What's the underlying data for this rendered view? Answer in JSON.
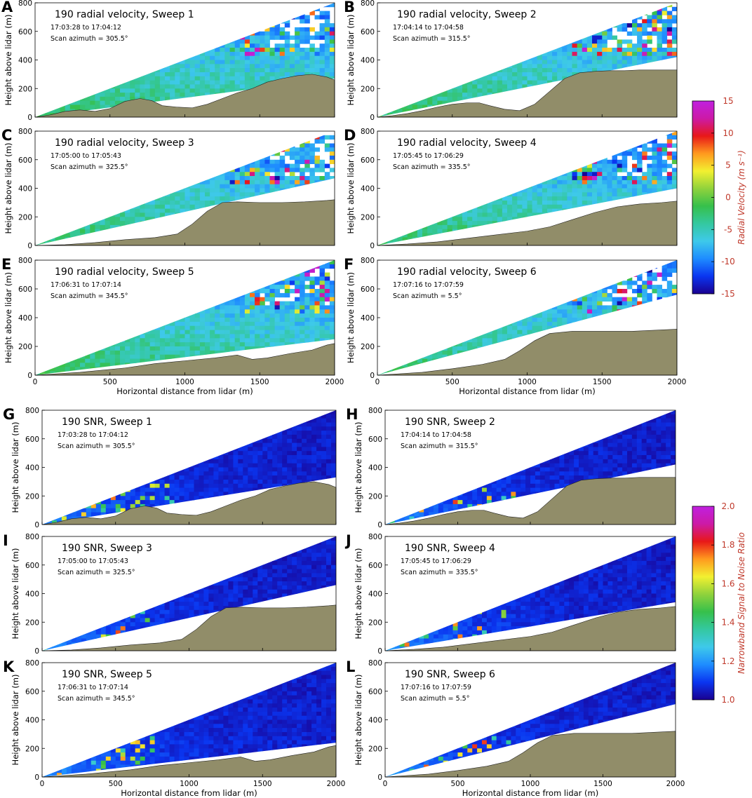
{
  "colors": {
    "terrain": "#918d69",
    "colormap": [
      "#1a0090",
      "#0a35f0",
      "#1e8cff",
      "#3ec9ea",
      "#34c8a0",
      "#36c04b",
      "#8fd23c",
      "#f2f030",
      "#ff9a1e",
      "#e81818",
      "#cc1aa6",
      "#c020e0"
    ],
    "label_color": "#c0392b"
  },
  "chart_data": [
    {
      "type": "heatmap",
      "panel": "A",
      "title": "190 radial velocity, Sweep 1",
      "time": "17:03:28 to 17:04:12",
      "azimuth": "Scan azimuth = 305.5°",
      "ylabel": "Height above lidar (m)",
      "xlabel": "",
      "x_ticks": [
        0,
        500,
        1000,
        1500,
        2000
      ],
      "y_ticks": [
        0,
        200,
        400,
        600,
        800
      ],
      "xlim": [
        0,
        2000
      ],
      "ylim": [
        0,
        800
      ],
      "beam_top_end": 800,
      "beam_bottom_end": 270,
      "terrain": [
        [
          0,
          0
        ],
        [
          100,
          15
        ],
        [
          200,
          40
        ],
        [
          300,
          50
        ],
        [
          400,
          40
        ],
        [
          500,
          60
        ],
        [
          600,
          110
        ],
        [
          700,
          130
        ],
        [
          780,
          115
        ],
        [
          850,
          80
        ],
        [
          950,
          70
        ],
        [
          1050,
          65
        ],
        [
          1150,
          90
        ],
        [
          1250,
          130
        ],
        [
          1350,
          170
        ],
        [
          1450,
          200
        ],
        [
          1550,
          245
        ],
        [
          1650,
          270
        ],
        [
          1750,
          290
        ],
        [
          1850,
          300
        ],
        [
          1950,
          280
        ],
        [
          2000,
          260
        ]
      ],
      "field": "radial_velocity"
    },
    {
      "type": "heatmap",
      "panel": "B",
      "title": "190 radial velocity, Sweep 2",
      "time": "17:04:14 to 17:04:58",
      "azimuth": "Scan azimuth = 315.5°",
      "ylabel": "Height above lidar (m)",
      "xlabel": "",
      "x_ticks": [
        0,
        500,
        1000,
        1500,
        2000
      ],
      "y_ticks": [
        0,
        200,
        400,
        600,
        800
      ],
      "xlim": [
        0,
        2000
      ],
      "ylim": [
        0,
        800
      ],
      "beam_top_end": 800,
      "beam_bottom_end": 420,
      "terrain": [
        [
          0,
          0
        ],
        [
          100,
          10
        ],
        [
          200,
          25
        ],
        [
          300,
          45
        ],
        [
          400,
          70
        ],
        [
          500,
          90
        ],
        [
          600,
          100
        ],
        [
          680,
          100
        ],
        [
          750,
          80
        ],
        [
          850,
          55
        ],
        [
          950,
          45
        ],
        [
          1050,
          90
        ],
        [
          1150,
          180
        ],
        [
          1250,
          270
        ],
        [
          1350,
          310
        ],
        [
          1450,
          320
        ],
        [
          1550,
          325
        ],
        [
          1650,
          325
        ],
        [
          1750,
          330
        ],
        [
          1850,
          330
        ],
        [
          2000,
          330
        ]
      ],
      "field": "radial_velocity"
    },
    {
      "type": "heatmap",
      "panel": "C",
      "title": "190 radial velocity, Sweep 3",
      "time": "17:05:00 to 17:05:43",
      "azimuth": "Scan azimuth = 325.5°",
      "ylabel": "Height above lidar (m)",
      "xlabel": "",
      "x_ticks": [
        0,
        500,
        1000,
        1500,
        2000
      ],
      "y_ticks": [
        0,
        200,
        400,
        600,
        800
      ],
      "xlim": [
        0,
        2000
      ],
      "ylim": [
        0,
        800
      ],
      "beam_top_end": 800,
      "beam_bottom_end": 470,
      "terrain": [
        [
          0,
          0
        ],
        [
          200,
          5
        ],
        [
          400,
          20
        ],
        [
          600,
          40
        ],
        [
          800,
          55
        ],
        [
          950,
          80
        ],
        [
          1050,
          150
        ],
        [
          1150,
          240
        ],
        [
          1250,
          300
        ],
        [
          1350,
          305
        ],
        [
          1500,
          300
        ],
        [
          1650,
          300
        ],
        [
          1800,
          305
        ],
        [
          1950,
          315
        ],
        [
          2000,
          320
        ]
      ],
      "field": "radial_velocity"
    },
    {
      "type": "heatmap",
      "panel": "D",
      "title": "190 radial velocity, Sweep 4",
      "time": "17:05:45 to 17:06:29",
      "azimuth": "Scan azimuth = 335.5°",
      "ylabel": "Height above lidar (m)",
      "xlabel": "",
      "x_ticks": [
        0,
        500,
        1000,
        1500,
        2000
      ],
      "y_ticks": [
        0,
        200,
        400,
        600,
        800
      ],
      "xlim": [
        0,
        2000
      ],
      "ylim": [
        0,
        800
      ],
      "beam_top_end": 800,
      "beam_bottom_end": 400,
      "terrain": [
        [
          0,
          0
        ],
        [
          200,
          10
        ],
        [
          400,
          25
        ],
        [
          600,
          50
        ],
        [
          800,
          75
        ],
        [
          1000,
          100
        ],
        [
          1150,
          130
        ],
        [
          1300,
          180
        ],
        [
          1450,
          230
        ],
        [
          1600,
          270
        ],
        [
          1750,
          290
        ],
        [
          1900,
          300
        ],
        [
          2000,
          310
        ]
      ],
      "field": "radial_velocity"
    },
    {
      "type": "heatmap",
      "panel": "E",
      "title": "190 radial velocity, Sweep 5",
      "time": "17:06:31 to 17:07:14",
      "azimuth": "Scan azimuth = 345.5°",
      "ylabel": "Height above lidar (m)",
      "xlabel": "Horizontal distance from lidar (m)",
      "x_ticks": [
        0,
        500,
        1000,
        1500,
        2000
      ],
      "y_ticks": [
        0,
        200,
        400,
        600,
        800
      ],
      "xlim": [
        0,
        2000
      ],
      "ylim": [
        0,
        800
      ],
      "beam_top_end": 800,
      "beam_bottom_end": 250,
      "terrain": [
        [
          0,
          0
        ],
        [
          300,
          20
        ],
        [
          600,
          50
        ],
        [
          800,
          80
        ],
        [
          1000,
          100
        ],
        [
          1200,
          120
        ],
        [
          1350,
          140
        ],
        [
          1450,
          110
        ],
        [
          1550,
          120
        ],
        [
          1700,
          150
        ],
        [
          1850,
          175
        ],
        [
          1950,
          210
        ],
        [
          2000,
          220
        ]
      ],
      "field": "radial_velocity"
    },
    {
      "type": "heatmap",
      "panel": "F",
      "title": "190 radial velocity, Sweep 6",
      "time": "17:07:16 to 17:07:59",
      "azimuth": "Scan azimuth = 5.5°",
      "ylabel": "Height above lidar (m)",
      "xlabel": "Horizontal distance from lidar (m)",
      "x_ticks": [
        0,
        500,
        1000,
        1500,
        2000
      ],
      "y_ticks": [
        0,
        200,
        400,
        600,
        800
      ],
      "xlim": [
        0,
        2000
      ],
      "ylim": [
        0,
        800
      ],
      "beam_top_end": 800,
      "beam_bottom_end": 560,
      "terrain": [
        [
          0,
          0
        ],
        [
          300,
          20
        ],
        [
          500,
          45
        ],
        [
          700,
          75
        ],
        [
          850,
          110
        ],
        [
          950,
          170
        ],
        [
          1050,
          240
        ],
        [
          1150,
          290
        ],
        [
          1300,
          305
        ],
        [
          1500,
          305
        ],
        [
          1700,
          305
        ],
        [
          1900,
          315
        ],
        [
          2000,
          320
        ]
      ],
      "field": "radial_velocity"
    },
    {
      "type": "heatmap",
      "panel": "G",
      "title": "190 SNR, Sweep 1",
      "time": "17:03:28 to 17:04:12",
      "azimuth": "Scan azimuth = 305.5°",
      "ylabel": "Height above lidar (m)",
      "xlabel": "",
      "x_ticks": [
        0,
        500,
        1000,
        1500,
        2000
      ],
      "y_ticks": [
        0,
        200,
        400,
        600,
        800
      ],
      "xlim": [
        0,
        2000
      ],
      "ylim": [
        0,
        800
      ],
      "beam_top_end": 800,
      "beam_bottom_end": 330,
      "terrain": [
        [
          0,
          0
        ],
        [
          100,
          15
        ],
        [
          200,
          40
        ],
        [
          300,
          50
        ],
        [
          400,
          40
        ],
        [
          500,
          60
        ],
        [
          600,
          110
        ],
        [
          700,
          130
        ],
        [
          780,
          115
        ],
        [
          850,
          80
        ],
        [
          950,
          70
        ],
        [
          1050,
          65
        ],
        [
          1150,
          90
        ],
        [
          1250,
          130
        ],
        [
          1350,
          170
        ],
        [
          1450,
          200
        ],
        [
          1550,
          245
        ],
        [
          1650,
          270
        ],
        [
          1750,
          290
        ],
        [
          1850,
          300
        ],
        [
          1950,
          280
        ],
        [
          2000,
          260
        ]
      ],
      "field": "snr"
    },
    {
      "type": "heatmap",
      "panel": "H",
      "title": "190 SNR, Sweep 2",
      "time": "17:04:14 to 17:04:58",
      "azimuth": "Scan azimuth = 315.5°",
      "ylabel": "Height above lidar (m)",
      "xlabel": "",
      "x_ticks": [
        0,
        500,
        1000,
        1500,
        2000
      ],
      "y_ticks": [
        0,
        200,
        400,
        600,
        800
      ],
      "xlim": [
        0,
        2000
      ],
      "ylim": [
        0,
        800
      ],
      "beam_top_end": 800,
      "beam_bottom_end": 420,
      "terrain": [
        [
          0,
          0
        ],
        [
          100,
          10
        ],
        [
          200,
          25
        ],
        [
          300,
          45
        ],
        [
          400,
          70
        ],
        [
          500,
          90
        ],
        [
          600,
          100
        ],
        [
          680,
          100
        ],
        [
          750,
          80
        ],
        [
          850,
          55
        ],
        [
          950,
          45
        ],
        [
          1050,
          90
        ],
        [
          1150,
          180
        ],
        [
          1250,
          270
        ],
        [
          1350,
          310
        ],
        [
          1450,
          320
        ],
        [
          1550,
          325
        ],
        [
          1650,
          325
        ],
        [
          1750,
          330
        ],
        [
          1850,
          330
        ],
        [
          2000,
          330
        ]
      ],
      "field": "snr"
    },
    {
      "type": "heatmap",
      "panel": "I",
      "title": "190 SNR, Sweep 3",
      "time": "17:05:00 to 17:05:43",
      "azimuth": "Scan azimuth = 325.5°",
      "ylabel": "Height above lidar (m)",
      "xlabel": "",
      "x_ticks": [
        0,
        500,
        1000,
        1500,
        2000
      ],
      "y_ticks": [
        0,
        200,
        400,
        600,
        800
      ],
      "xlim": [
        0,
        2000
      ],
      "ylim": [
        0,
        800
      ],
      "beam_top_end": 800,
      "beam_bottom_end": 460,
      "terrain": [
        [
          0,
          0
        ],
        [
          200,
          5
        ],
        [
          400,
          20
        ],
        [
          600,
          40
        ],
        [
          800,
          55
        ],
        [
          950,
          80
        ],
        [
          1050,
          150
        ],
        [
          1150,
          240
        ],
        [
          1250,
          300
        ],
        [
          1350,
          305
        ],
        [
          1500,
          300
        ],
        [
          1650,
          300
        ],
        [
          1800,
          305
        ],
        [
          1950,
          315
        ],
        [
          2000,
          320
        ]
      ],
      "field": "snr"
    },
    {
      "type": "heatmap",
      "panel": "J",
      "title": "190 SNR, Sweep 4",
      "time": "17:05:45 to 17:06:29",
      "azimuth": "Scan azimuth = 335.5°",
      "ylabel": "Height above lidar (m)",
      "xlabel": "",
      "x_ticks": [
        0,
        500,
        1000,
        1500,
        2000
      ],
      "y_ticks": [
        0,
        200,
        400,
        600,
        800
      ],
      "xlim": [
        0,
        2000
      ],
      "ylim": [
        0,
        800
      ],
      "beam_top_end": 800,
      "beam_bottom_end": 340,
      "terrain": [
        [
          0,
          0
        ],
        [
          200,
          10
        ],
        [
          400,
          25
        ],
        [
          600,
          50
        ],
        [
          800,
          75
        ],
        [
          1000,
          100
        ],
        [
          1150,
          130
        ],
        [
          1300,
          180
        ],
        [
          1450,
          230
        ],
        [
          1600,
          270
        ],
        [
          1750,
          290
        ],
        [
          1900,
          300
        ],
        [
          2000,
          310
        ]
      ],
      "field": "snr"
    },
    {
      "type": "heatmap",
      "panel": "K",
      "title": "190 SNR, Sweep 5",
      "time": "17:06:31 to 17:07:14",
      "azimuth": "Scan azimuth = 345.5°",
      "ylabel": "Height above lidar (m)",
      "xlabel": "Horizontal distance from lidar (m)",
      "x_ticks": [
        0,
        500,
        1000,
        1500,
        2000
      ],
      "y_ticks": [
        0,
        200,
        400,
        600,
        800
      ],
      "xlim": [
        0,
        2000
      ],
      "ylim": [
        0,
        800
      ],
      "beam_top_end": 800,
      "beam_bottom_end": 240,
      "terrain": [
        [
          0,
          0
        ],
        [
          300,
          20
        ],
        [
          600,
          50
        ],
        [
          800,
          80
        ],
        [
          1000,
          100
        ],
        [
          1200,
          120
        ],
        [
          1350,
          140
        ],
        [
          1450,
          110
        ],
        [
          1550,
          120
        ],
        [
          1700,
          150
        ],
        [
          1850,
          175
        ],
        [
          1950,
          210
        ],
        [
          2000,
          220
        ]
      ],
      "field": "snr"
    },
    {
      "type": "heatmap",
      "panel": "L",
      "title": "190 SNR, Sweep 6",
      "time": "17:07:16 to 17:07:59",
      "azimuth": "Scan azimuth = 5.5°",
      "ylabel": "Height above lidar (m)",
      "xlabel": "Horizontal distance from lidar (m)",
      "x_ticks": [
        0,
        500,
        1000,
        1500,
        2000
      ],
      "y_ticks": [
        0,
        200,
        400,
        600,
        800
      ],
      "xlim": [
        0,
        2000
      ],
      "ylim": [
        0,
        800
      ],
      "beam_top_end": 800,
      "beam_bottom_end": 510,
      "terrain": [
        [
          0,
          0
        ],
        [
          300,
          20
        ],
        [
          500,
          45
        ],
        [
          700,
          75
        ],
        [
          850,
          110
        ],
        [
          950,
          170
        ],
        [
          1050,
          240
        ],
        [
          1150,
          290
        ],
        [
          1300,
          305
        ],
        [
          1500,
          305
        ],
        [
          1700,
          305
        ],
        [
          1900,
          315
        ],
        [
          2000,
          320
        ]
      ],
      "field": "snr"
    }
  ],
  "colorbars": [
    {
      "label": "Radial Velocity (m s⁻¹)",
      "ticks": [
        "15",
        "10",
        "5",
        "0",
        "-5",
        "-10",
        "-15"
      ],
      "range": [
        -15,
        15
      ]
    },
    {
      "label": "Narrowband Signal to Noise Ratio",
      "ticks": [
        "2.0",
        "1.8",
        "1.6",
        "1.4",
        "1.2",
        "1.0"
      ],
      "range": [
        1.0,
        2.0
      ]
    }
  ]
}
